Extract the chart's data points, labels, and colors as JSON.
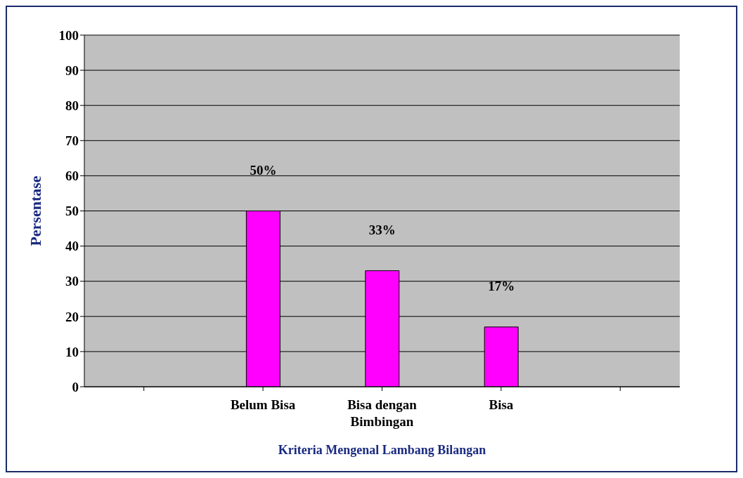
{
  "chart_data": {
    "type": "bar",
    "xlabel": "Kriteria Mengenal Lambang Bilangan",
    "ylabel": "Persentase",
    "categories": [
      null,
      "Belum Bisa",
      "Bisa dengan Bimbingan",
      "Bisa",
      null
    ],
    "values": [
      null,
      50,
      33,
      17,
      null
    ],
    "value_labels": [
      null,
      "50%",
      "33%",
      "17%",
      null
    ],
    "color": "#ff00ff",
    "ylim": [
      0,
      100
    ],
    "yticks": [
      0,
      10,
      20,
      30,
      40,
      50,
      60,
      70,
      80,
      90,
      100
    ],
    "grid": "y"
  }
}
